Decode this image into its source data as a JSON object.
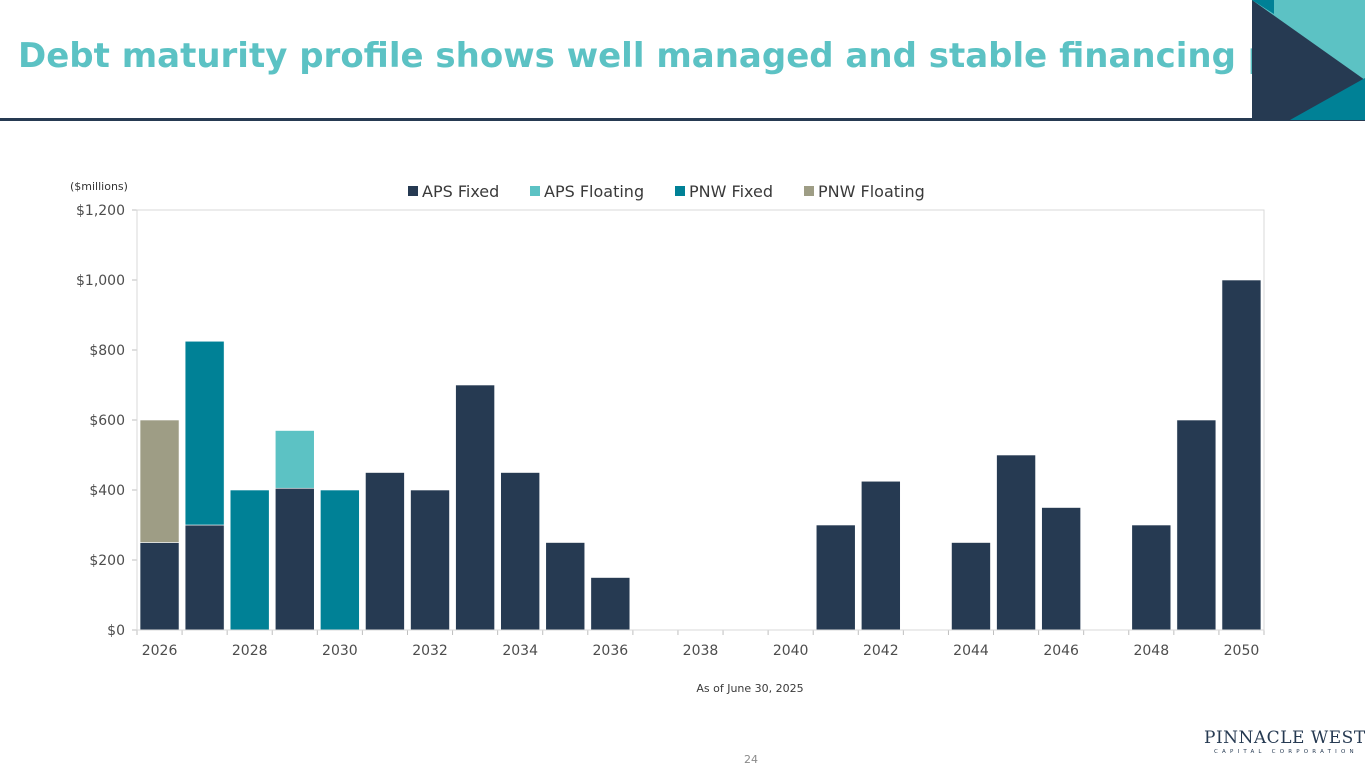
{
  "slide": {
    "title": "Debt maturity profile shows well managed and stable financing plan",
    "page_number": "24",
    "logo_text": "PINNACLE WEST",
    "logo_subtext": "CAPITAL CORPORATION"
  },
  "colors": {
    "title": "#5cc2c4",
    "APS Fixed": "#263a52",
    "APS Floating": "#5cc2c4",
    "PNW Fixed": "#008196",
    "PNW Floating": "#9e9d85"
  },
  "chart_data": {
    "type": "bar",
    "stacked": true,
    "units_label": "($millions)",
    "footnote": "As of June 30, 2025",
    "categories": [
      "2026",
      "2027",
      "2028",
      "2029",
      "2030",
      "2031",
      "2032",
      "2033",
      "2034",
      "2035",
      "2036",
      "2037",
      "2038",
      "2039",
      "2040",
      "2041",
      "2042",
      "2043",
      "2044",
      "2045",
      "2046",
      "2047",
      "2048",
      "2049",
      "2050"
    ],
    "x_tick_labels": [
      "2026",
      "2028",
      "2030",
      "2032",
      "2034",
      "2036",
      "2038",
      "2040",
      "2042",
      "2044",
      "2046",
      "2048",
      "2050"
    ],
    "y_tick_labels": [
      "$0",
      "$200",
      "$400",
      "$600",
      "$800",
      "$1,000",
      "$1,200"
    ],
    "ylim": [
      0,
      1200
    ],
    "y_step": 200,
    "legend_position": "top",
    "grid": false,
    "series": [
      {
        "name": "APS Fixed",
        "values": [
          250,
          300,
          0,
          405,
          0,
          450,
          400,
          700,
          450,
          250,
          150,
          0,
          0,
          0,
          0,
          300,
          425,
          0,
          250,
          500,
          350,
          0,
          300,
          600,
          1000
        ]
      },
      {
        "name": "APS Floating",
        "values": [
          0,
          0,
          0,
          165,
          0,
          0,
          0,
          0,
          0,
          0,
          0,
          0,
          0,
          0,
          0,
          0,
          0,
          0,
          0,
          0,
          0,
          0,
          0,
          0,
          0
        ]
      },
      {
        "name": "PNW Fixed",
        "values": [
          0,
          525,
          400,
          0,
          400,
          0,
          0,
          0,
          0,
          0,
          0,
          0,
          0,
          0,
          0,
          0,
          0,
          0,
          0,
          0,
          0,
          0,
          0,
          0,
          0
        ]
      },
      {
        "name": "PNW Floating",
        "values": [
          350,
          0,
          0,
          0,
          0,
          0,
          0,
          0,
          0,
          0,
          0,
          0,
          0,
          0,
          0,
          0,
          0,
          0,
          0,
          0,
          0,
          0,
          0,
          0,
          0
        ]
      }
    ]
  }
}
